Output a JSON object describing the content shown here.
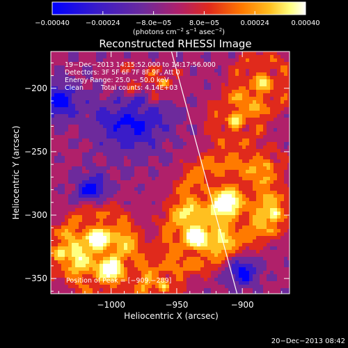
{
  "chart_data": {
    "type": "heatmap",
    "title": "Reconstructed RHESSI Image",
    "xlabel": "Heliocentric X (arcsec)",
    "ylabel": "Heliocentric Y (arcsec)",
    "xlim": [
      -1046,
      -864
    ],
    "ylim": [
      -362,
      -171
    ],
    "x_ticks": [
      -1000,
      -950,
      -900
    ],
    "x_tick_labels": [
      "−1000",
      "−950",
      "−900"
    ],
    "y_ticks": [
      -200,
      -250,
      -300,
      -350
    ],
    "y_tick_labels": [
      "−200",
      "−250",
      "−300",
      "−350"
    ],
    "colorbar": {
      "range": [
        -0.0004,
        0.0004
      ],
      "ticks": [
        -0.0004,
        -0.00024,
        -8e-05,
        8e-05,
        0.00024,
        0.0004
      ],
      "tick_labels": [
        "−0.00040",
        "−0.00024",
        "−8.0e−05",
        "8.0e−05",
        "0.00024",
        "0.00040"
      ],
      "unit_label": "(photons cm",
      "unit_exp1": "−2",
      "unit_mid": " s",
      "unit_exp2": "−1",
      "unit_mid2": " asec",
      "unit_exp3": "−2",
      "unit_end": ")",
      "colors": [
        "#0000ff",
        "#3a1cc8",
        "#6d2a9c",
        "#b0206a",
        "#e02a1c",
        "#ff7a00",
        "#ffc020",
        "#ffff80",
        "#ffffff"
      ]
    },
    "annotations": {
      "time_range": "19−Dec−2013 14:15:52.000 to 14:17:56.000",
      "detectors": "Detectors: 3F 5F 6F 7F 8F 9F, Att 0",
      "energy": "Energy Range: 25.0 − 50.0 keV",
      "clean_label": "Clean",
      "total_counts": "Total counts: 4.14E+03",
      "peak": "Position of Peak = [−909,−289]"
    },
    "peak_position": [
      -909,
      -289
    ],
    "limb_line": [
      [
        -954,
        -171
      ],
      [
        -904,
        -362
      ]
    ]
  },
  "footer": {
    "timestamp": "20−Dec−2013 08:42"
  }
}
